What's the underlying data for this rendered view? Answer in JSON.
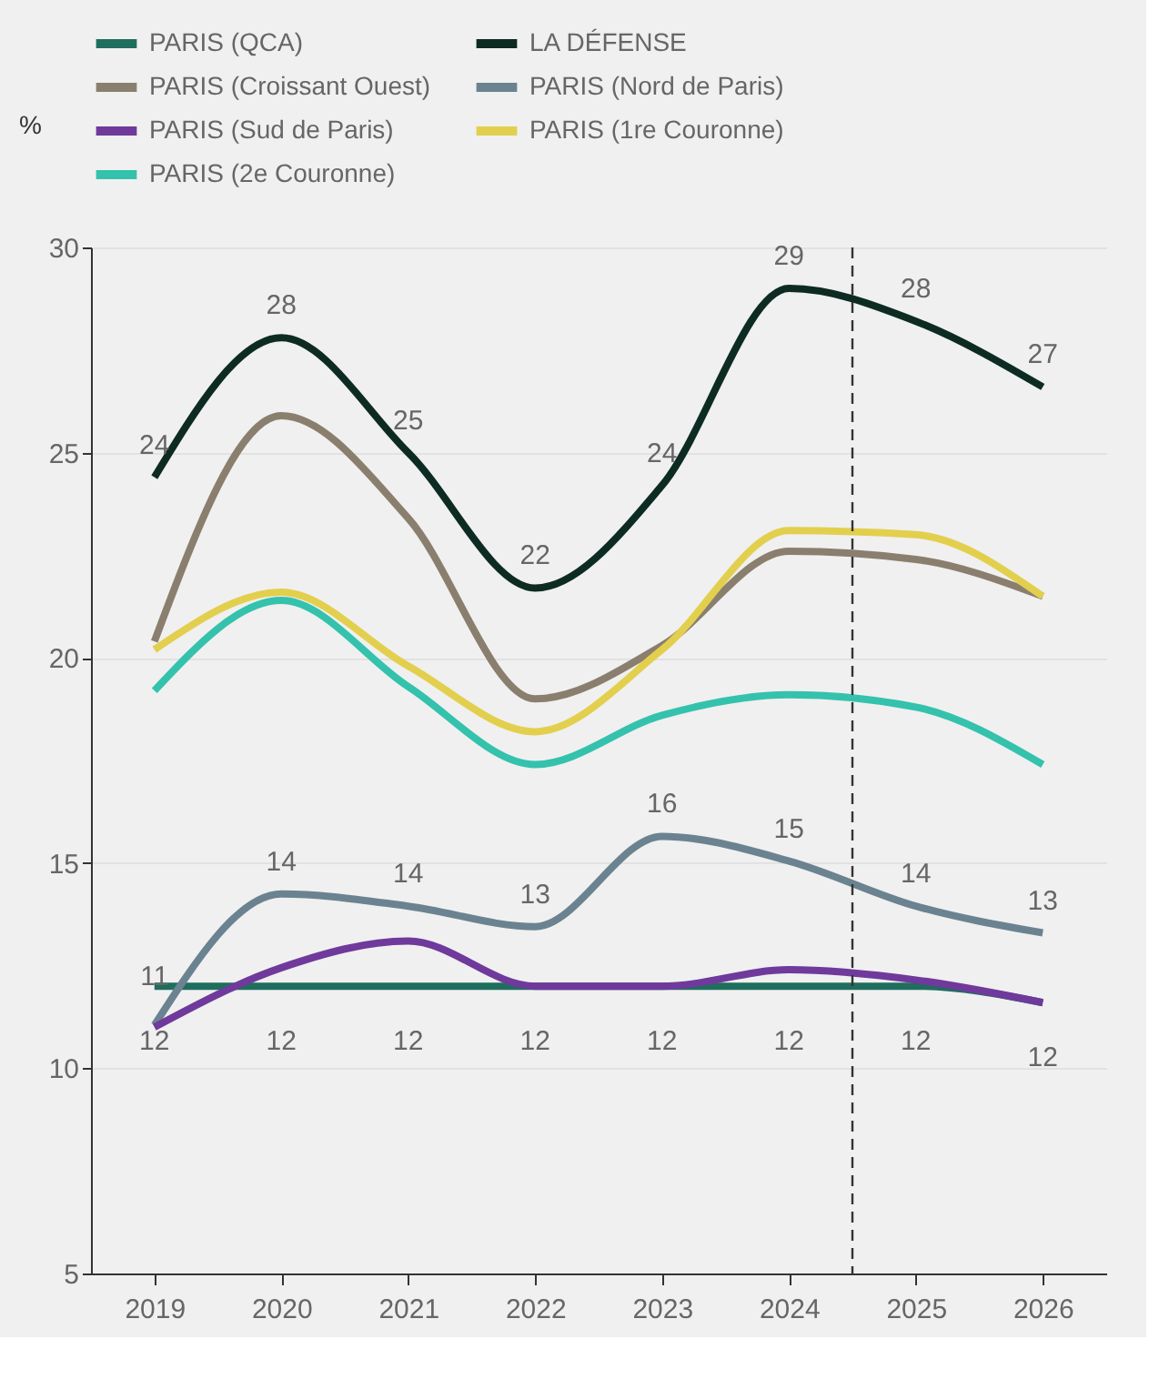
{
  "chart_data": {
    "type": "line",
    "ylabel": "%",
    "x": [
      2019,
      2020,
      2021,
      2022,
      2023,
      2024,
      2025,
      2026
    ],
    "xlim": [
      2018.5,
      2026.5
    ],
    "xticks": [
      2019,
      2020,
      2021,
      2022,
      2023,
      2024,
      2025,
      2026
    ],
    "ylim": [
      5,
      30
    ],
    "yticks": [
      5,
      10,
      15,
      20,
      25,
      30
    ],
    "grid": "y",
    "legend": "top",
    "marker": "none",
    "line_style": "solid",
    "ref_lines": [
      {
        "axis": "x",
        "value": 2024.5,
        "color": "#333333",
        "line_style": "dashed"
      }
    ],
    "series": [
      {
        "name": "PARIS (QCA)",
        "color": "#1f6e5e",
        "values": [
          12,
          12,
          12,
          12,
          12,
          12,
          12,
          11.6
        ],
        "value_labels": [
          "12",
          "12",
          "12",
          "12",
          "12",
          "12",
          "12",
          "12"
        ]
      },
      {
        "name": "LA DÉFENSE",
        "color": "#0d2b22",
        "values": [
          24.4,
          27.8,
          25.0,
          21.7,
          24.2,
          29.0,
          28.2,
          26.6
        ],
        "value_labels": [
          "24",
          "28",
          "25",
          "22",
          "24",
          "29",
          "28",
          "27"
        ]
      },
      {
        "name": "PARIS (Croissant Ouest)",
        "color": "#8a7f6e",
        "values": [
          20.4,
          25.9,
          23.4,
          19.0,
          20.3,
          22.6,
          22.4,
          21.5
        ]
      },
      {
        "name": "PARIS (Nord de Paris)",
        "color": "#6b8390",
        "values": [
          11.05,
          14.25,
          13.95,
          13.45,
          15.65,
          15.05,
          13.95,
          13.3
        ],
        "value_labels": [
          null,
          "14",
          "14",
          "13",
          "16",
          "15",
          "14",
          "13"
        ]
      },
      {
        "name": "PARIS (Sud de Paris)",
        "color": "#6f3a9b",
        "values": [
          11.0,
          12.45,
          13.1,
          12.0,
          12.0,
          12.4,
          12.15,
          11.6
        ],
        "value_labels": [
          "11",
          null,
          null,
          null,
          null,
          null,
          null,
          null
        ]
      },
      {
        "name": "PARIS (1re Couronne)",
        "color": "#e3cf4e",
        "values": [
          20.2,
          21.6,
          19.8,
          18.2,
          20.2,
          23.1,
          23.0,
          21.5
        ]
      },
      {
        "name": "PARIS (2e Couronne)",
        "color": "#34c2ad",
        "values": [
          19.2,
          21.4,
          19.3,
          17.4,
          18.6,
          19.1,
          18.8,
          17.4
        ]
      }
    ]
  }
}
